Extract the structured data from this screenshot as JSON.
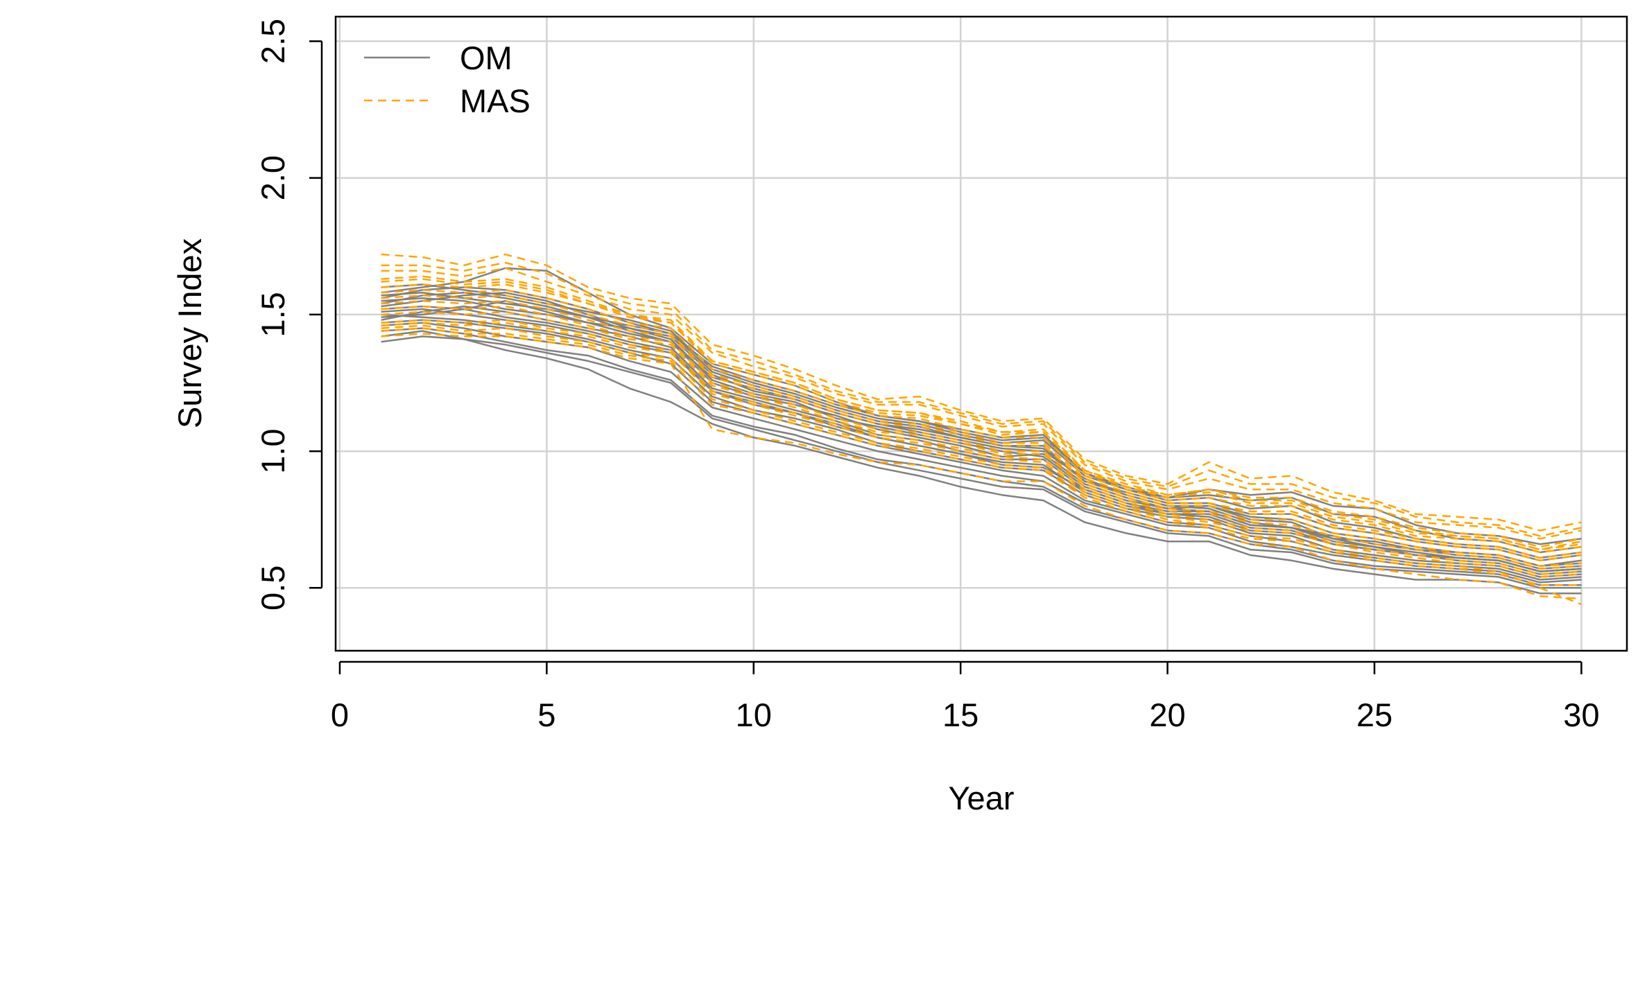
{
  "chart_data": {
    "type": "line",
    "title": "",
    "xlabel": "Year",
    "ylabel": "Survey Index",
    "xlim": [
      -0.1,
      31.1
    ],
    "ylim": [
      0.27,
      2.59
    ],
    "xticks": [
      0,
      5,
      10,
      15,
      20,
      25,
      30
    ],
    "xtick_labels": [
      "0",
      "5",
      "10",
      "15",
      "20",
      "25",
      "30"
    ],
    "yticks": [
      0.5,
      1.0,
      1.5,
      2.0,
      2.5
    ],
    "ytick_labels": [
      "0.5",
      "1.0",
      "1.5",
      "2.0",
      "2.5"
    ],
    "grid": true,
    "legend": {
      "position": "top-left",
      "entries": [
        {
          "label": "OM",
          "color": "#808080",
          "dash": "solid"
        },
        {
          "label": "MAS",
          "color": "#FFA500",
          "dash": "dashed"
        }
      ]
    },
    "years": [
      1,
      2,
      3,
      4,
      5,
      6,
      7,
      8,
      9,
      10,
      11,
      12,
      13,
      14,
      15,
      16,
      17,
      18,
      19,
      20,
      21,
      22,
      23,
      24,
      25,
      26,
      27,
      28,
      29,
      30
    ],
    "series": [
      {
        "name": "OM",
        "color": "#808080",
        "dash": "solid",
        "lines": [
          [
            1.52,
            1.53,
            1.52,
            1.49,
            1.47,
            1.44,
            1.4,
            1.37,
            1.22,
            1.18,
            1.14,
            1.09,
            1.05,
            1.02,
            0.99,
            0.95,
            0.94,
            0.86,
            0.81,
            0.77,
            0.76,
            0.71,
            0.7,
            0.66,
            0.64,
            0.62,
            0.61,
            0.6,
            0.56,
            0.57
          ],
          [
            1.58,
            1.6,
            1.62,
            1.67,
            1.66,
            1.58,
            1.5,
            1.45,
            1.32,
            1.28,
            1.24,
            1.18,
            1.13,
            1.11,
            1.08,
            1.05,
            1.06,
            0.92,
            0.86,
            0.83,
            0.86,
            0.84,
            0.85,
            0.8,
            0.79,
            0.73,
            0.7,
            0.69,
            0.66,
            0.68
          ],
          [
            1.42,
            1.44,
            1.41,
            1.37,
            1.34,
            1.3,
            1.23,
            1.18,
            1.1,
            1.05,
            1.02,
            0.98,
            0.94,
            0.91,
            0.87,
            0.84,
            0.82,
            0.74,
            0.7,
            0.67,
            0.67,
            0.62,
            0.6,
            0.57,
            0.55,
            0.53,
            0.53,
            0.52,
            0.48,
            0.48
          ],
          [
            1.49,
            1.5,
            1.52,
            1.55,
            1.51,
            1.47,
            1.43,
            1.4,
            1.25,
            1.2,
            1.17,
            1.13,
            1.08,
            1.05,
            1.02,
            0.98,
            0.99,
            0.88,
            0.83,
            0.79,
            0.8,
            0.75,
            0.74,
            0.68,
            0.67,
            0.64,
            0.63,
            0.62,
            0.58,
            0.59
          ],
          [
            1.55,
            1.56,
            1.55,
            1.52,
            1.5,
            1.47,
            1.45,
            1.42,
            1.28,
            1.22,
            1.19,
            1.14,
            1.1,
            1.07,
            1.04,
            1.01,
            1.0,
            0.9,
            0.84,
            0.8,
            0.79,
            0.74,
            0.72,
            0.69,
            0.66,
            0.64,
            0.62,
            0.61,
            0.57,
            0.58
          ],
          [
            1.46,
            1.47,
            1.45,
            1.42,
            1.4,
            1.38,
            1.33,
            1.29,
            1.16,
            1.12,
            1.08,
            1.04,
            1.0,
            0.97,
            0.94,
            0.91,
            0.89,
            0.81,
            0.77,
            0.73,
            0.72,
            0.67,
            0.65,
            0.62,
            0.6,
            0.58,
            0.57,
            0.56,
            0.52,
            0.53
          ],
          [
            1.6,
            1.61,
            1.59,
            1.57,
            1.54,
            1.51,
            1.48,
            1.44,
            1.3,
            1.25,
            1.21,
            1.16,
            1.12,
            1.1,
            1.06,
            1.03,
            1.04,
            0.91,
            0.86,
            0.82,
            0.83,
            0.79,
            0.8,
            0.74,
            0.72,
            0.68,
            0.66,
            0.65,
            0.61,
            0.63
          ],
          [
            1.5,
            1.49,
            1.48,
            1.46,
            1.44,
            1.41,
            1.37,
            1.34,
            1.2,
            1.15,
            1.12,
            1.08,
            1.03,
            1.0,
            0.97,
            0.94,
            0.93,
            0.84,
            0.79,
            0.76,
            0.75,
            0.7,
            0.69,
            0.64,
            0.62,
            0.6,
            0.59,
            0.58,
            0.54,
            0.55
          ],
          [
            1.53,
            1.55,
            1.57,
            1.58,
            1.55,
            1.5,
            1.45,
            1.41,
            1.26,
            1.21,
            1.18,
            1.12,
            1.09,
            1.06,
            1.03,
            1.0,
            0.98,
            0.87,
            0.82,
            0.79,
            0.78,
            0.73,
            0.72,
            0.68,
            0.65,
            0.63,
            0.61,
            0.6,
            0.56,
            0.57
          ],
          [
            1.44,
            1.45,
            1.43,
            1.4,
            1.37,
            1.35,
            1.3,
            1.26,
            1.13,
            1.09,
            1.06,
            1.01,
            0.97,
            0.95,
            0.92,
            0.89,
            0.87,
            0.79,
            0.75,
            0.71,
            0.7,
            0.66,
            0.64,
            0.6,
            0.58,
            0.57,
            0.56,
            0.55,
            0.51,
            0.51
          ],
          [
            1.57,
            1.58,
            1.56,
            1.54,
            1.52,
            1.49,
            1.46,
            1.43,
            1.29,
            1.24,
            1.2,
            1.15,
            1.11,
            1.09,
            1.05,
            1.02,
            1.02,
            0.89,
            0.85,
            0.81,
            0.81,
            0.77,
            0.77,
            0.72,
            0.7,
            0.67,
            0.65,
            0.64,
            0.6,
            0.62
          ],
          [
            1.51,
            1.52,
            1.5,
            1.48,
            1.46,
            1.43,
            1.39,
            1.36,
            1.22,
            1.17,
            1.14,
            1.1,
            1.05,
            1.02,
            0.99,
            0.96,
            0.95,
            0.85,
            0.8,
            0.77,
            0.77,
            0.72,
            0.71,
            0.66,
            0.64,
            0.62,
            0.6,
            0.59,
            0.55,
            0.56
          ],
          [
            1.47,
            1.48,
            1.47,
            1.45,
            1.43,
            1.4,
            1.36,
            1.32,
            1.18,
            1.14,
            1.1,
            1.06,
            1.02,
            0.99,
            0.96,
            0.93,
            0.91,
            0.82,
            0.78,
            0.74,
            0.73,
            0.69,
            0.67,
            0.63,
            0.61,
            0.59,
            0.58,
            0.57,
            0.53,
            0.54
          ],
          [
            1.54,
            1.57,
            1.58,
            1.56,
            1.53,
            1.49,
            1.44,
            1.4,
            1.27,
            1.23,
            1.19,
            1.14,
            1.1,
            1.08,
            1.05,
            1.02,
            1.01,
            0.89,
            0.84,
            0.8,
            0.8,
            0.76,
            0.75,
            0.7,
            0.68,
            0.65,
            0.63,
            0.62,
            0.58,
            0.6
          ],
          [
            1.4,
            1.42,
            1.41,
            1.39,
            1.36,
            1.33,
            1.29,
            1.25,
            1.12,
            1.08,
            1.04,
            1.0,
            0.96,
            0.93,
            0.9,
            0.87,
            0.86,
            0.78,
            0.74,
            0.7,
            0.69,
            0.64,
            0.63,
            0.59,
            0.57,
            0.56,
            0.55,
            0.54,
            0.5,
            0.5
          ],
          [
            1.56,
            1.59,
            1.6,
            1.59,
            1.56,
            1.52,
            1.47,
            1.43,
            1.31,
            1.26,
            1.22,
            1.17,
            1.13,
            1.11,
            1.07,
            1.04,
            1.05,
            0.92,
            0.87,
            0.83,
            0.84,
            0.82,
            0.83,
            0.77,
            0.76,
            0.71,
            0.68,
            0.67,
            0.63,
            0.65
          ],
          [
            1.48,
            1.51,
            1.53,
            1.51,
            1.48,
            1.45,
            1.42,
            1.38,
            1.23,
            1.19,
            1.15,
            1.11,
            1.06,
            1.04,
            1.0,
            0.97,
            0.97,
            0.86,
            0.81,
            0.78,
            0.78,
            0.73,
            0.72,
            0.67,
            0.65,
            0.62,
            0.61,
            0.6,
            0.56,
            0.57
          ]
        ]
      },
      {
        "name": "MAS",
        "color": "#FFA500",
        "dash": "dashed",
        "lines": [
          [
            1.72,
            1.71,
            1.68,
            1.72,
            1.68,
            1.6,
            1.56,
            1.54,
            1.39,
            1.35,
            1.3,
            1.24,
            1.19,
            1.2,
            1.15,
            1.11,
            1.12,
            0.97,
            0.91,
            0.88,
            0.96,
            0.9,
            0.91,
            0.85,
            0.82,
            0.77,
            0.76,
            0.75,
            0.71,
            0.74
          ],
          [
            1.66,
            1.66,
            1.64,
            1.67,
            1.62,
            1.57,
            1.52,
            1.5,
            1.36,
            1.31,
            1.27,
            1.21,
            1.17,
            1.17,
            1.13,
            1.09,
            1.1,
            0.95,
            0.89,
            0.86,
            0.9,
            0.86,
            0.86,
            0.81,
            0.79,
            0.74,
            0.73,
            0.72,
            0.68,
            0.71
          ],
          [
            1.63,
            1.64,
            1.62,
            1.63,
            1.6,
            1.55,
            1.5,
            1.48,
            1.33,
            1.29,
            1.25,
            1.19,
            1.15,
            1.14,
            1.11,
            1.07,
            1.08,
            0.93,
            0.88,
            0.84,
            0.86,
            0.83,
            0.83,
            0.78,
            0.76,
            0.72,
            0.7,
            0.69,
            0.65,
            0.68
          ],
          [
            1.58,
            1.59,
            1.58,
            1.59,
            1.56,
            1.52,
            1.47,
            1.45,
            1.3,
            1.26,
            1.22,
            1.17,
            1.13,
            1.12,
            1.08,
            1.05,
            1.05,
            0.91,
            0.86,
            0.82,
            0.83,
            0.8,
            0.8,
            0.75,
            0.73,
            0.69,
            0.68,
            0.67,
            0.63,
            0.65
          ],
          [
            1.54,
            1.55,
            1.54,
            1.55,
            1.52,
            1.48,
            1.44,
            1.42,
            1.27,
            1.23,
            1.19,
            1.14,
            1.1,
            1.09,
            1.06,
            1.02,
            1.02,
            0.89,
            0.84,
            0.8,
            0.8,
            0.77,
            0.77,
            0.72,
            0.7,
            0.67,
            0.65,
            0.64,
            0.6,
            0.62
          ],
          [
            1.5,
            1.51,
            1.5,
            1.51,
            1.48,
            1.45,
            1.41,
            1.39,
            1.24,
            1.2,
            1.16,
            1.11,
            1.07,
            1.06,
            1.03,
            0.99,
            0.99,
            0.87,
            0.82,
            0.78,
            0.77,
            0.74,
            0.73,
            0.69,
            0.66,
            0.64,
            0.62,
            0.61,
            0.57,
            0.58
          ],
          [
            1.46,
            1.47,
            1.46,
            1.47,
            1.44,
            1.42,
            1.38,
            1.36,
            1.21,
            1.17,
            1.13,
            1.09,
            1.05,
            1.03,
            1.0,
            0.97,
            0.96,
            0.85,
            0.8,
            0.76,
            0.74,
            0.71,
            0.7,
            0.66,
            0.63,
            0.61,
            0.59,
            0.58,
            0.54,
            0.55
          ],
          [
            1.44,
            1.45,
            1.43,
            1.43,
            1.41,
            1.39,
            1.35,
            1.33,
            1.17,
            1.14,
            1.1,
            1.06,
            1.02,
            1.0,
            0.97,
            0.94,
            0.93,
            0.83,
            0.78,
            0.74,
            0.72,
            0.68,
            0.67,
            0.63,
            0.6,
            0.58,
            0.57,
            0.55,
            0.51,
            0.51
          ],
          [
            1.68,
            1.68,
            1.66,
            1.69,
            1.65,
            1.58,
            1.54,
            1.52,
            1.37,
            1.33,
            1.28,
            1.22,
            1.18,
            1.18,
            1.14,
            1.1,
            1.11,
            0.96,
            0.9,
            0.87,
            0.93,
            0.88,
            0.88,
            0.83,
            0.81,
            0.76,
            0.74,
            0.73,
            0.69,
            0.72
          ],
          [
            1.6,
            1.61,
            1.6,
            1.61,
            1.58,
            1.54,
            1.49,
            1.47,
            1.32,
            1.28,
            1.24,
            1.18,
            1.14,
            1.13,
            1.1,
            1.06,
            1.07,
            0.92,
            0.87,
            0.83,
            0.85,
            0.81,
            0.81,
            0.76,
            0.74,
            0.7,
            0.69,
            0.68,
            0.64,
            0.66
          ],
          [
            1.52,
            1.53,
            1.52,
            1.53,
            1.5,
            1.46,
            1.42,
            1.4,
            1.25,
            1.21,
            1.17,
            1.12,
            1.08,
            1.07,
            1.04,
            1.0,
            1.0,
            0.88,
            0.83,
            0.79,
            0.78,
            0.75,
            0.75,
            0.7,
            0.68,
            0.65,
            0.63,
            0.62,
            0.58,
            0.59
          ],
          [
            1.47,
            1.48,
            1.47,
            1.48,
            1.45,
            1.43,
            1.39,
            1.37,
            1.22,
            1.18,
            1.14,
            1.1,
            1.06,
            1.04,
            1.01,
            0.98,
            0.97,
            0.86,
            0.81,
            0.77,
            0.75,
            0.72,
            0.71,
            0.67,
            0.64,
            0.62,
            0.6,
            0.59,
            0.55,
            0.56
          ],
          [
            1.42,
            1.43,
            1.42,
            1.42,
            1.4,
            1.38,
            1.34,
            1.32,
            1.08,
            1.05,
            1.03,
            0.99,
            0.96,
            0.95,
            0.92,
            0.89,
            0.89,
            0.8,
            0.75,
            0.71,
            0.7,
            0.66,
            0.65,
            0.6,
            0.57,
            0.55,
            0.53,
            0.52,
            0.47,
            0.46
          ],
          [
            1.62,
            1.63,
            1.61,
            1.62,
            1.59,
            1.54,
            1.5,
            1.47,
            1.33,
            1.29,
            1.25,
            1.19,
            1.15,
            1.14,
            1.1,
            1.07,
            1.07,
            0.93,
            0.87,
            0.84,
            0.86,
            0.82,
            0.82,
            0.77,
            0.75,
            0.71,
            0.69,
            0.68,
            0.64,
            0.67
          ],
          [
            1.56,
            1.57,
            1.56,
            1.57,
            1.54,
            1.5,
            1.46,
            1.43,
            1.28,
            1.24,
            1.2,
            1.15,
            1.11,
            1.1,
            1.07,
            1.03,
            1.03,
            0.9,
            0.85,
            0.81,
            0.81,
            0.78,
            0.78,
            0.73,
            0.71,
            0.68,
            0.66,
            0.65,
            0.61,
            0.63
          ],
          [
            1.45,
            1.46,
            1.44,
            1.45,
            1.42,
            1.4,
            1.36,
            1.34,
            1.19,
            1.15,
            1.11,
            1.07,
            1.03,
            1.01,
            0.98,
            0.95,
            0.94,
            0.84,
            0.79,
            0.75,
            0.73,
            0.69,
            0.68,
            0.64,
            0.61,
            0.59,
            0.58,
            0.56,
            0.5,
            0.44
          ]
        ]
      }
    ]
  }
}
